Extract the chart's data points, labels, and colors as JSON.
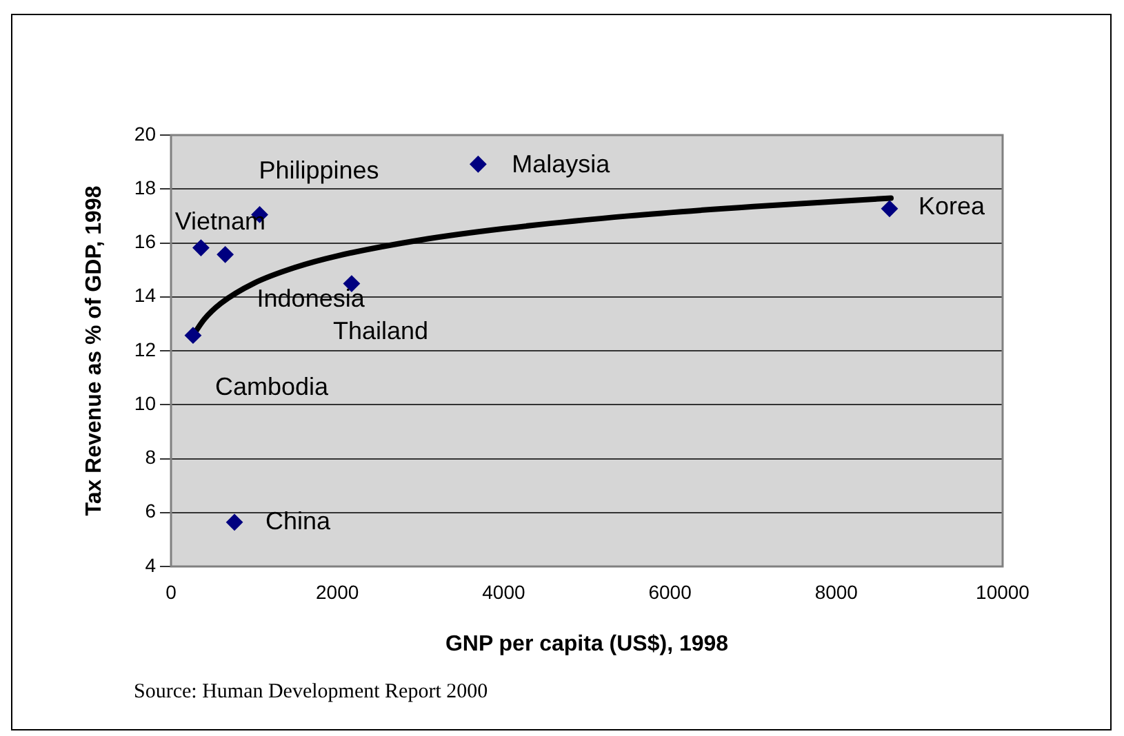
{
  "chart_data": {
    "type": "scatter",
    "xlabel": "GNP per capita (US$), 1998",
    "ylabel": "Tax Revenue as % of GDP, 1998",
    "xlim": [
      0,
      10000
    ],
    "xticks": [
      0,
      2000,
      4000,
      6000,
      8000,
      10000
    ],
    "ylim": [
      4,
      20
    ],
    "yticks": [
      4,
      6,
      8,
      10,
      12,
      14,
      16,
      18,
      20
    ],
    "grid": "y",
    "legend": false,
    "marker": "diamond",
    "x": [
      265,
      360,
      652,
      1066,
      2172,
      3693,
      8640,
      763
    ],
    "series": [
      {
        "color": "#000080",
        "values": [
          12.57,
          15.82,
          15.57,
          17.05,
          14.49,
          18.92,
          17.27,
          5.64
        ]
      },
      {
        "type": "line",
        "color": "#000000",
        "marker": "none",
        "x": [
          265,
          400,
          600,
          1000,
          1500,
          2000,
          3000,
          4000,
          5500,
          7000,
          8657
        ],
        "values": [
          12.57,
          13.17,
          13.76,
          14.51,
          15.1,
          15.52,
          16.11,
          16.53,
          17.0,
          17.35,
          17.66
        ]
      }
    ],
    "annotations": [
      {
        "text": "Cambodia",
        "x": 265,
        "y": 12.57
      },
      {
        "text": "Vietnam",
        "x": 360,
        "y": 15.82
      },
      {
        "text": "Indonesia",
        "x": 652,
        "y": 15.57
      },
      {
        "text": "Philippines",
        "x": 1066,
        "y": 17.05
      },
      {
        "text": "Thailand",
        "x": 2172,
        "y": 14.49
      },
      {
        "text": "Malaysia",
        "x": 3693,
        "y": 18.92
      },
      {
        "text": "Korea",
        "x": 8640,
        "y": 17.27
      },
      {
        "text": "China",
        "x": 763,
        "y": 5.64
      },
      "Source: Human Development Report 2000"
    ]
  }
}
